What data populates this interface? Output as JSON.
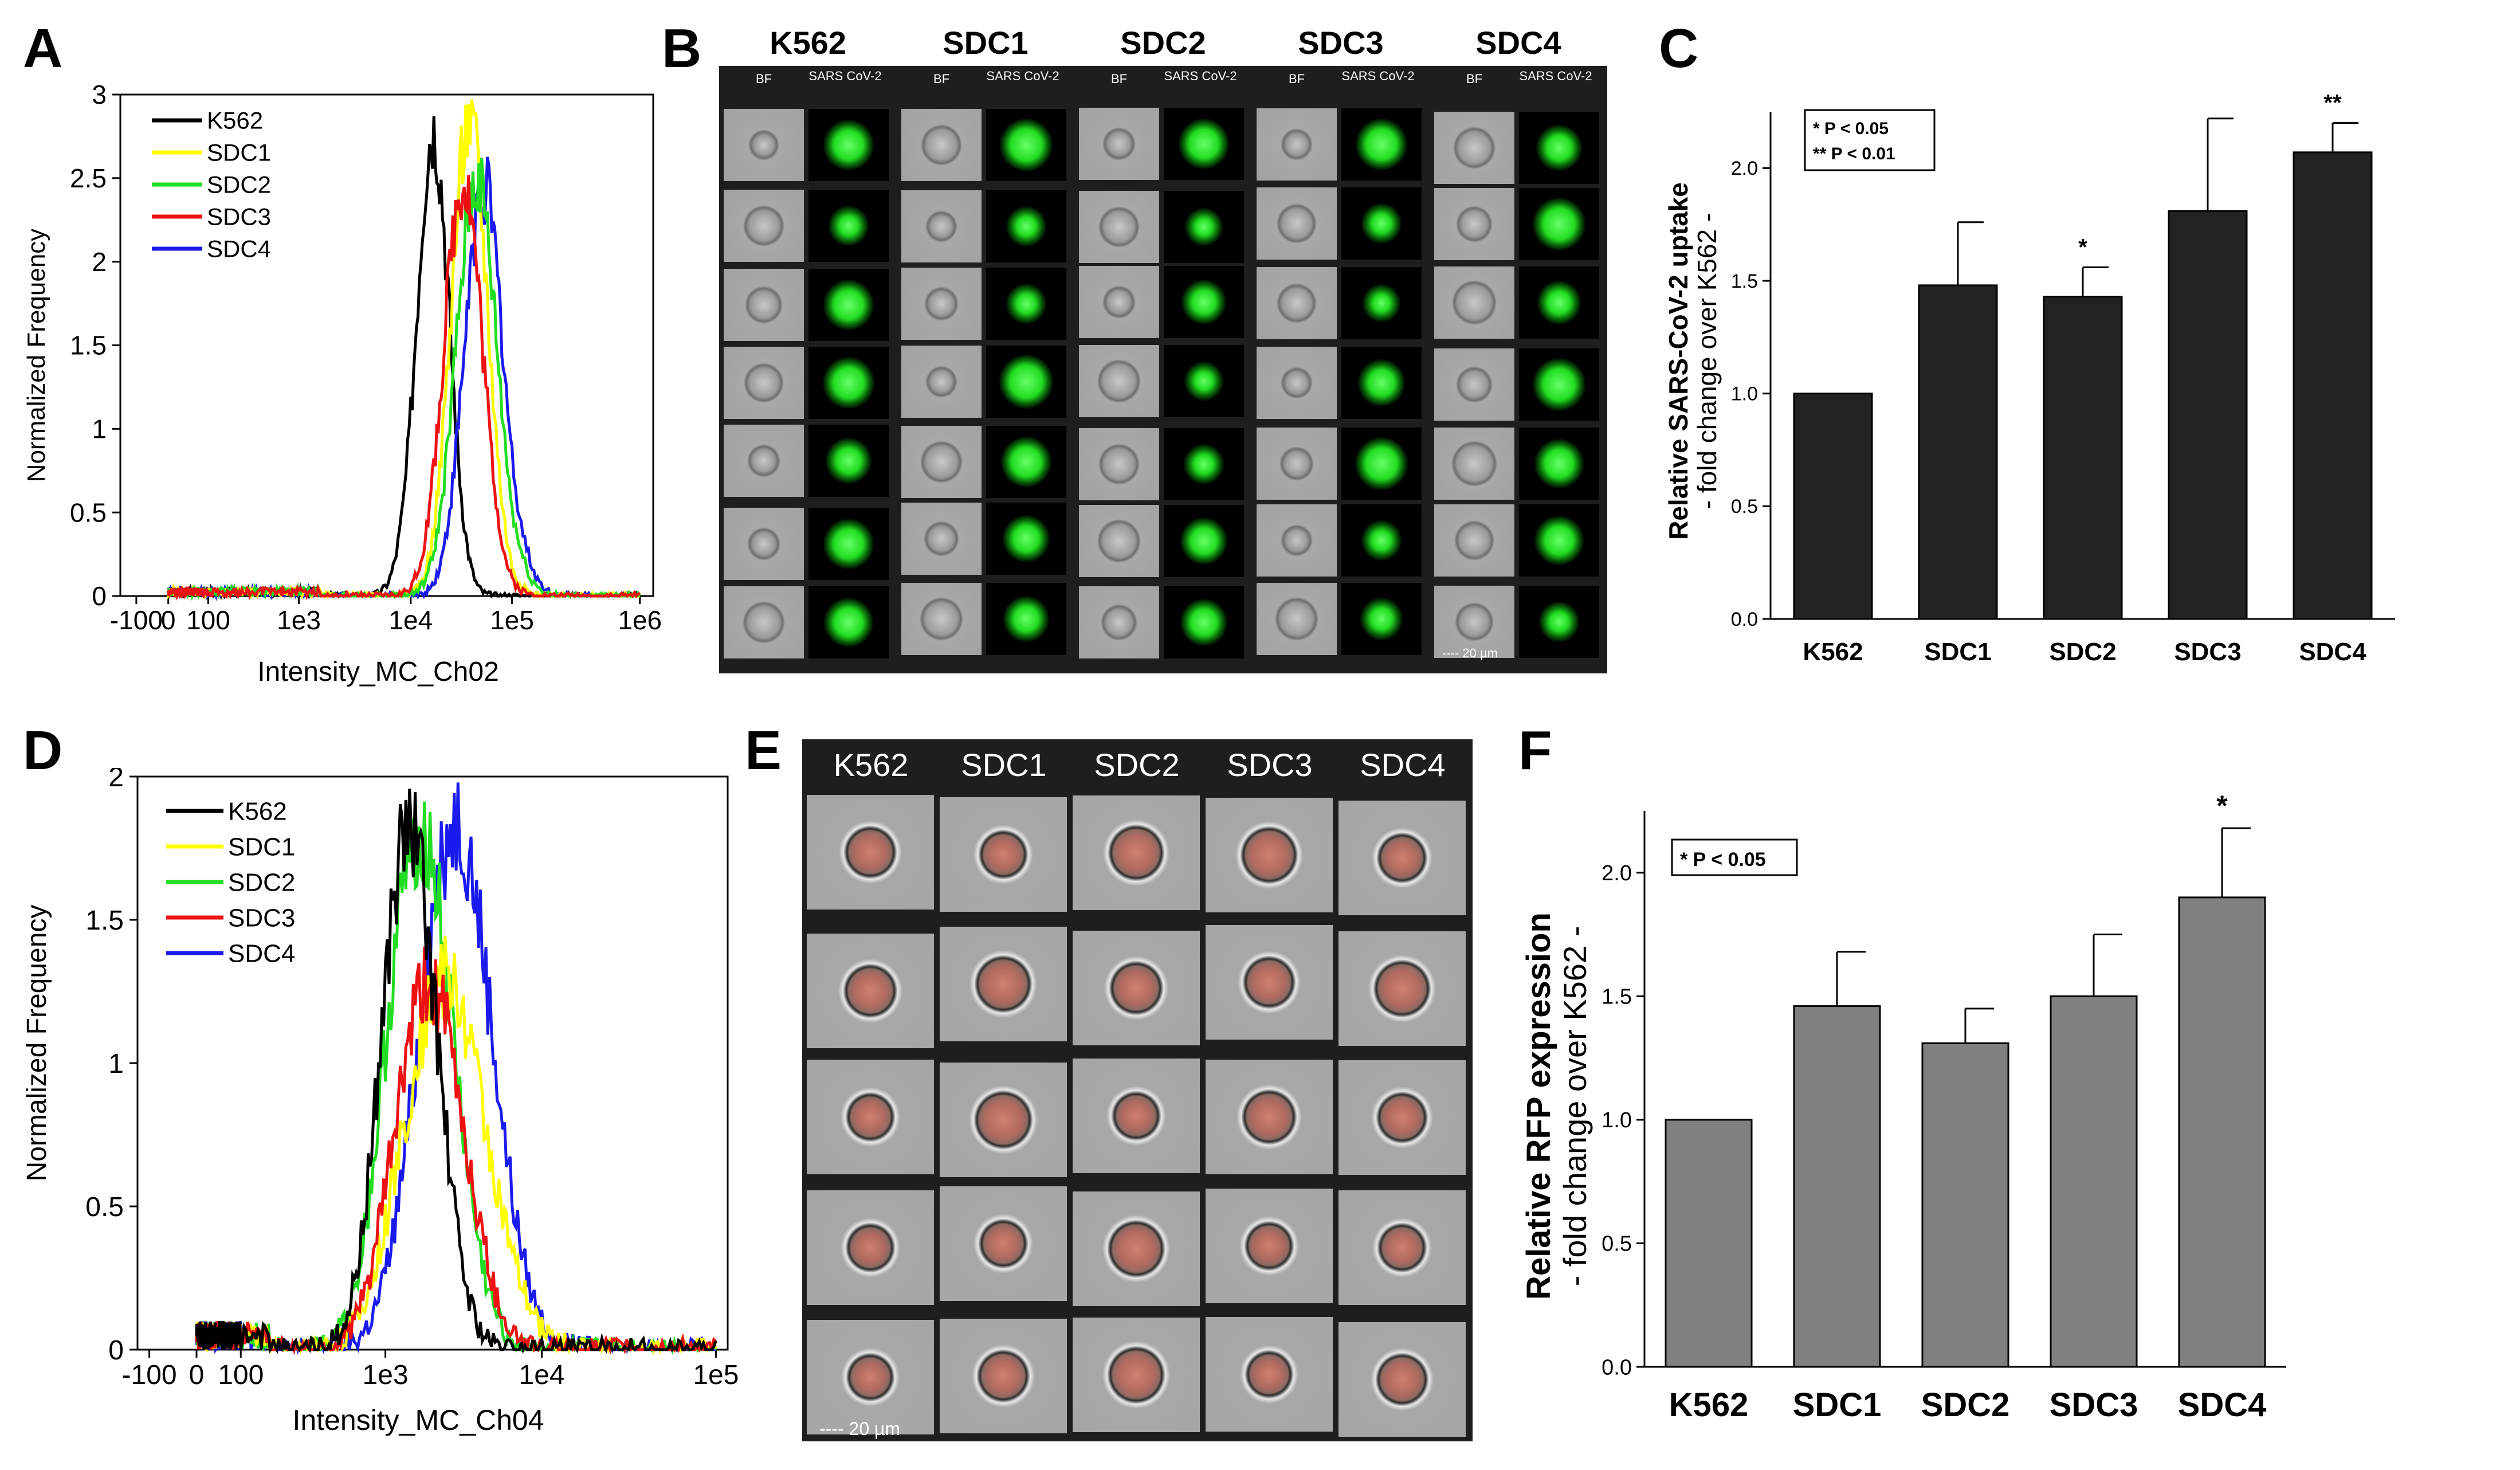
{
  "panels": {
    "a": {
      "letter": "A"
    },
    "b": {
      "letter": "B"
    },
    "c": {
      "letter": "C"
    },
    "d": {
      "letter": "D"
    },
    "e": {
      "letter": "E"
    },
    "f": {
      "letter": "F"
    }
  },
  "colors": {
    "K562": "#000000",
    "SDC1": "#ffff00",
    "SDC2": "#22dd22",
    "SDC3": "#ee1111",
    "SDC4": "#1a1aee",
    "bar_c": "#222222",
    "bar_f": "#808080"
  },
  "chart_data": [
    {
      "id": "A",
      "type": "line",
      "xlabel": "Intensity_MC_Ch02",
      "ylabel": "Normalized Frequency",
      "xticks": [
        "-100",
        "0",
        "100",
        "1e3",
        "1e4",
        "1e5",
        "1e6"
      ],
      "yticks": [
        "0",
        "0.5",
        "1",
        "1.5",
        "2",
        "2.5",
        "3"
      ],
      "ylim": [
        0,
        3
      ],
      "legend": [
        "K562",
        "SDC1",
        "SDC2",
        "SDC3",
        "SDC4"
      ],
      "legend_position": "top-left",
      "series": [
        {
          "name": "K562",
          "peak_log10": 4.22,
          "width": 0.16,
          "height": 2.8
        },
        {
          "name": "SDC1",
          "peak_log10": 4.58,
          "width": 0.18,
          "height": 2.85
        },
        {
          "name": "SDC2",
          "peak_log10": 4.65,
          "width": 0.2,
          "height": 2.5
        },
        {
          "name": "SDC3",
          "peak_log10": 4.52,
          "width": 0.19,
          "height": 2.5
        },
        {
          "name": "SDC4",
          "peak_log10": 4.72,
          "width": 0.19,
          "height": 2.45
        }
      ]
    },
    {
      "id": "C",
      "type": "bar",
      "title": "",
      "ylabel": "Relative SARS-CoV-2 uptake",
      "ylabel2": "- fold change over K562 -",
      "categories": [
        "K562",
        "SDC1",
        "SDC2",
        "SDC3",
        "SDC4"
      ],
      "values": [
        1.0,
        1.48,
        1.43,
        1.81,
        2.07
      ],
      "errors": [
        0,
        0.28,
        0.13,
        0.41,
        0.13
      ],
      "significance": [
        "",
        "",
        "*",
        "",
        "**"
      ],
      "yticks": [
        "0.0",
        "0.5",
        "1.0",
        "1.5",
        "2.0"
      ],
      "ylim": [
        0,
        2.25
      ],
      "legend_lines": [
        "* P < 0.05",
        "** P < 0.01"
      ]
    },
    {
      "id": "D",
      "type": "line",
      "xlabel": "Intensity_MC_Ch04",
      "ylabel": "Normalized Frequency",
      "xticks": [
        "-100",
        "0",
        "100",
        "1e3",
        "1e4",
        "1e5"
      ],
      "yticks": [
        "0",
        "0.5",
        "1",
        "1.5",
        "2"
      ],
      "ylim": [
        0,
        2
      ],
      "legend": [
        "K562",
        "SDC1",
        "SDC2",
        "SDC3",
        "SDC4"
      ],
      "legend_position": "top-left",
      "series": [
        {
          "name": "K562",
          "peak_log10": 3.15,
          "width": 0.18,
          "height": 1.82
        },
        {
          "name": "SDC1",
          "peak_log10": 3.38,
          "width": 0.26,
          "height": 1.3
        },
        {
          "name": "SDC2",
          "peak_log10": 3.22,
          "width": 0.21,
          "height": 1.82
        },
        {
          "name": "SDC3",
          "peak_log10": 3.28,
          "width": 0.22,
          "height": 1.28
        },
        {
          "name": "SDC4",
          "peak_log10": 3.45,
          "width": 0.23,
          "height": 1.85
        }
      ]
    },
    {
      "id": "F",
      "type": "bar",
      "title": "",
      "ylabel": "Relative RFP expression",
      "ylabel2": "- fold change over K562 -",
      "categories": [
        "K562",
        "SDC1",
        "SDC2",
        "SDC3",
        "SDC4"
      ],
      "values": [
        1.0,
        1.46,
        1.31,
        1.5,
        1.9
      ],
      "errors": [
        0,
        0.22,
        0.14,
        0.25,
        0.28
      ],
      "significance": [
        "",
        "",
        "",
        "",
        "*"
      ],
      "yticks": [
        "0.0",
        "0.5",
        "1.0",
        "1.5",
        "2.0"
      ],
      "ylim": [
        0,
        2.25
      ],
      "legend_lines": [
        "* P < 0.05"
      ]
    }
  ],
  "panel_b": {
    "groups": [
      "K562",
      "SDC1",
      "SDC2",
      "SDC3",
      "SDC4"
    ],
    "sub_bf": "BF",
    "sub_sars": "SARS CoV-2",
    "rows": 7,
    "scale_label": "20 µm"
  },
  "panel_e": {
    "groups": [
      "K562",
      "SDC1",
      "SDC2",
      "SDC3",
      "SDC4"
    ],
    "rows": 5,
    "scale_label": "20 µm"
  }
}
